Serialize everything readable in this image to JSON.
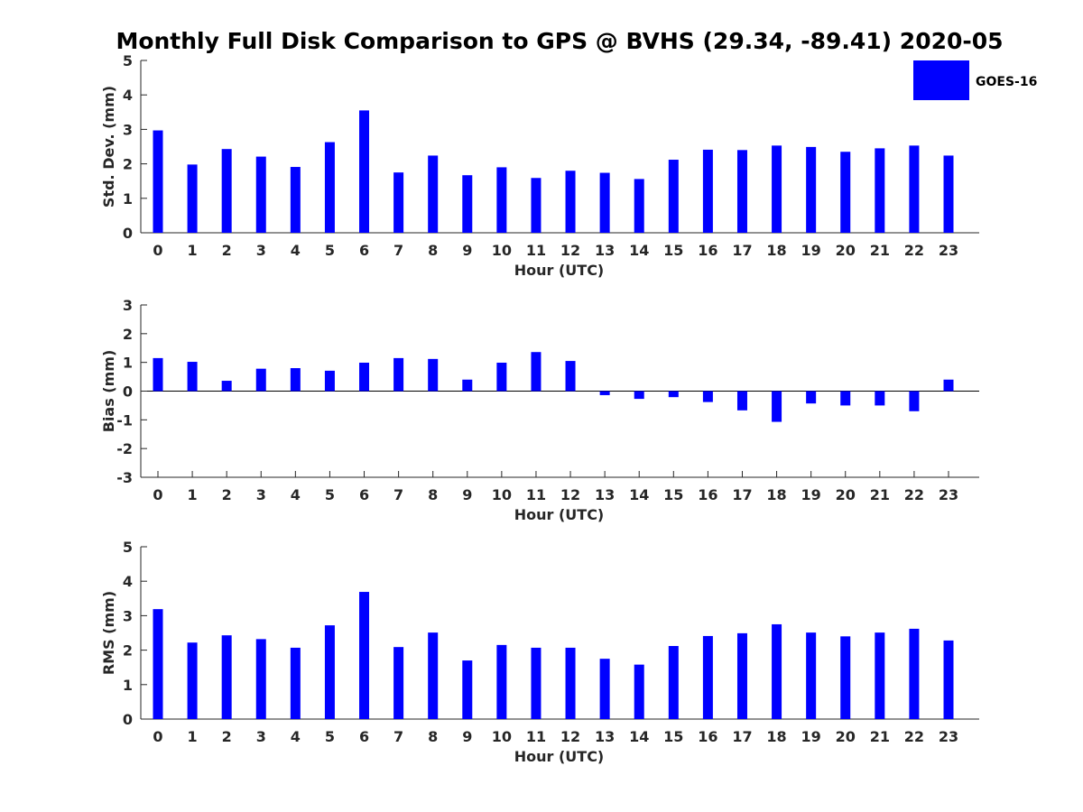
{
  "chart_data": [
    {
      "type": "bar",
      "title": "Monthly Full Disk Comparison to GPS @ BVHS (29.34, -89.41) 2020-05",
      "xlabel": "Hour (UTC)",
      "ylabel": "Std. Dev. (mm)",
      "ylim": [
        0,
        5
      ],
      "yticks": [
        0,
        1,
        2,
        3,
        4,
        5
      ],
      "categories": [
        "0",
        "1",
        "2",
        "3",
        "4",
        "5",
        "6",
        "7",
        "8",
        "9",
        "10",
        "11",
        "12",
        "13",
        "14",
        "15",
        "16",
        "17",
        "18",
        "19",
        "20",
        "21",
        "22",
        "23"
      ],
      "series": [
        {
          "name": "GOES-16",
          "color": "#0000ff",
          "values": [
            2.97,
            1.98,
            2.43,
            2.21,
            1.91,
            2.63,
            3.55,
            1.75,
            2.24,
            1.67,
            1.9,
            1.59,
            1.8,
            1.74,
            1.56,
            2.12,
            2.41,
            2.4,
            2.53,
            2.49,
            2.35,
            2.45,
            2.53,
            2.24
          ]
        }
      ],
      "grid": false,
      "legend": "top-right"
    },
    {
      "type": "bar",
      "xlabel": "Hour (UTC)",
      "ylabel": "Bias (mm)",
      "ylim": [
        -3,
        3
      ],
      "yticks": [
        -3,
        -2,
        -1,
        0,
        1,
        2,
        3
      ],
      "categories": [
        "0",
        "1",
        "2",
        "3",
        "4",
        "5",
        "6",
        "7",
        "8",
        "9",
        "10",
        "11",
        "12",
        "13",
        "14",
        "15",
        "16",
        "17",
        "18",
        "19",
        "20",
        "21",
        "22",
        "23"
      ],
      "series": [
        {
          "color": "#0000ff",
          "values": [
            1.15,
            1.02,
            0.36,
            0.78,
            0.8,
            0.71,
            0.99,
            1.15,
            1.12,
            0.4,
            0.99,
            1.36,
            1.05,
            -0.14,
            -0.27,
            -0.21,
            -0.38,
            -0.67,
            -1.07,
            -0.43,
            -0.5,
            -0.5,
            -0.7,
            0.4
          ]
        }
      ],
      "grid": false,
      "zero_line": true
    },
    {
      "type": "bar",
      "xlabel": "Hour (UTC)",
      "ylabel": "RMS (mm)",
      "ylim": [
        0,
        5
      ],
      "yticks": [
        0,
        1,
        2,
        3,
        4,
        5
      ],
      "categories": [
        "0",
        "1",
        "2",
        "3",
        "4",
        "5",
        "6",
        "7",
        "8",
        "9",
        "10",
        "11",
        "12",
        "13",
        "14",
        "15",
        "16",
        "17",
        "18",
        "19",
        "20",
        "21",
        "22",
        "23"
      ],
      "series": [
        {
          "color": "#0000ff",
          "values": [
            3.19,
            2.22,
            2.43,
            2.32,
            2.07,
            2.72,
            3.69,
            2.09,
            2.51,
            1.7,
            2.15,
            2.07,
            2.07,
            1.75,
            1.58,
            2.12,
            2.41,
            2.49,
            2.75,
            2.51,
            2.4,
            2.51,
            2.62,
            2.28
          ]
        }
      ],
      "grid": false
    }
  ],
  "legend": {
    "label": "GOES-16",
    "color": "#0000ff"
  }
}
